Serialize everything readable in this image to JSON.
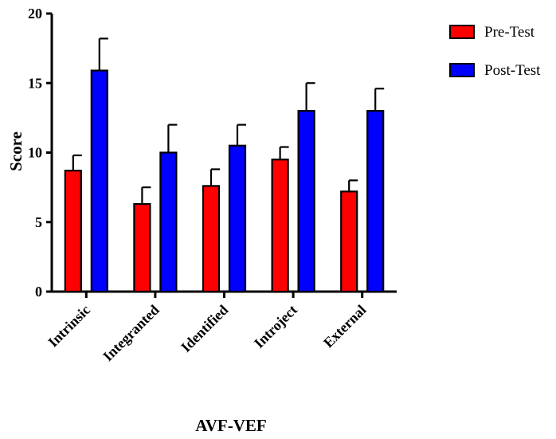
{
  "chart_data": {
    "type": "bar",
    "categories": [
      "Intrinsic",
      "Integranted",
      "Identified",
      "Introject",
      "External"
    ],
    "series": [
      {
        "name": "Pre-Test",
        "color": "#ff0000",
        "values": [
          8.7,
          6.3,
          7.6,
          9.5,
          7.2
        ],
        "errors": [
          1.1,
          1.2,
          1.2,
          0.9,
          0.8
        ]
      },
      {
        "name": "Post-Test",
        "color": "#0000ff",
        "values": [
          15.9,
          10.0,
          10.5,
          13.0,
          13.0
        ],
        "errors": [
          2.3,
          2.0,
          1.5,
          2.0,
          1.6
        ]
      }
    ],
    "ylabel": "Score",
    "xlabel": "AVF-VEF",
    "ylim": [
      0,
      20
    ],
    "yticks": [
      "0",
      "5",
      "10",
      "15",
      "20"
    ],
    "legend_position": "top-right"
  }
}
